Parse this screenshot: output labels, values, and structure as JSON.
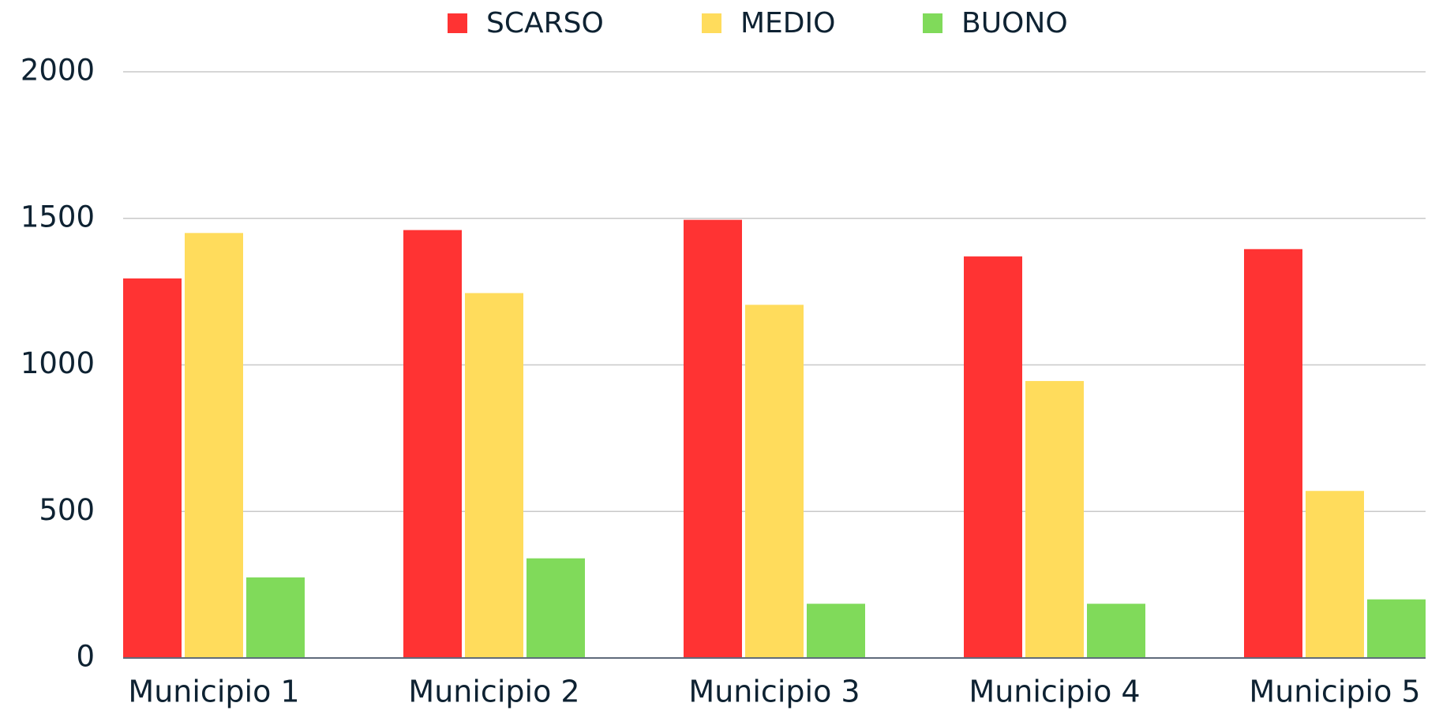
{
  "chart_data": {
    "type": "bar",
    "categories": [
      "Municipio 1",
      "Municipio 2",
      "Municipio 3",
      "Municipio 4",
      "Municipio 5"
    ],
    "series": [
      {
        "name": "SCARSO",
        "color": "#ff3333",
        "values": [
          1295,
          1460,
          1495,
          1370,
          1395
        ]
      },
      {
        "name": "MEDIO",
        "color": "#ffdc5c",
        "values": [
          1450,
          1245,
          1205,
          945,
          570
        ]
      },
      {
        "name": "BUONO",
        "color": "#80da5a",
        "values": [
          275,
          340,
          185,
          185,
          200
        ]
      }
    ],
    "ylim": [
      0,
      2000
    ],
    "yticks": [
      0,
      500,
      1000,
      1500,
      2000
    ],
    "grid": true,
    "legend": "top"
  }
}
